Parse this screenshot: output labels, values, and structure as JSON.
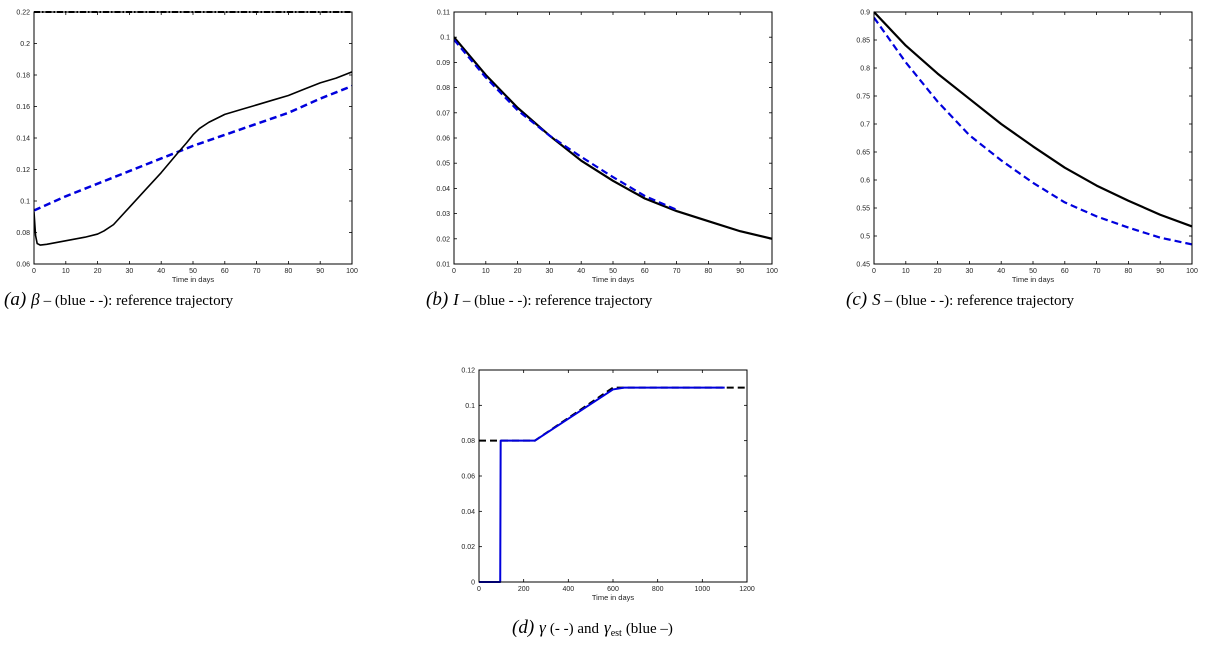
{
  "panels": [
    {
      "id": "a",
      "caption": {
        "tag": "(a)",
        "symbol": "β",
        "text": "– (blue - -): reference trajectory"
      },
      "chart_data": {
        "type": "line",
        "xlabel": "Time in days",
        "ylabel": "",
        "xlim": [
          0,
          100
        ],
        "ylim": [
          0.06,
          0.22
        ],
        "xticks": [
          0,
          10,
          20,
          30,
          40,
          50,
          60,
          70,
          80,
          90,
          100
        ],
        "yticks": [
          0.06,
          0.08,
          0.1,
          0.12,
          0.14,
          0.16,
          0.18,
          0.2,
          0.22
        ],
        "ytick_labels": [
          "0.06",
          "0.08",
          "0.1",
          "0.12",
          "0.14",
          "0.16",
          "0.18",
          "0.2",
          "0.22"
        ],
        "series": [
          {
            "color": "#000000",
            "style": "dashdot",
            "width": 2,
            "x": [
              0,
              100
            ],
            "y": [
              0.22,
              0.22
            ]
          },
          {
            "color": "#0000dd",
            "style": "dashed",
            "width": 2.5,
            "x": [
              0,
              10,
              20,
              30,
              40,
              50,
              60,
              70,
              80,
              90,
              100
            ],
            "y": [
              0.094,
              0.103,
              0.111,
              0.119,
              0.127,
              0.135,
              0.142,
              0.149,
              0.156,
              0.165,
              0.173
            ]
          },
          {
            "color": "#000000",
            "style": "solid",
            "width": 1.6,
            "x": [
              0,
              0.5,
              1,
              2,
              4,
              8,
              12,
              16,
              20,
              22,
              25,
              30,
              35,
              40,
              45,
              48,
              50,
              52,
              55,
              60,
              65,
              70,
              75,
              80,
              85,
              90,
              95,
              100
            ],
            "y": [
              0.093,
              0.078,
              0.073,
              0.072,
              0.0725,
              0.074,
              0.0755,
              0.077,
              0.079,
              0.081,
              0.085,
              0.096,
              0.107,
              0.118,
              0.13,
              0.137,
              0.142,
              0.146,
              0.15,
              0.155,
              0.158,
              0.161,
              0.164,
              0.167,
              0.171,
              0.175,
              0.178,
              0.182
            ]
          }
        ]
      }
    },
    {
      "id": "b",
      "caption": {
        "tag": "(b)",
        "symbol": "I",
        "text": "– (blue - -): reference trajectory"
      },
      "chart_data": {
        "type": "line",
        "xlabel": "Time in days",
        "ylabel": "",
        "xlim": [
          0,
          100
        ],
        "ylim": [
          0.01,
          0.11
        ],
        "xticks": [
          0,
          10,
          20,
          30,
          40,
          50,
          60,
          70,
          80,
          90,
          100
        ],
        "yticks": [
          0.01,
          0.02,
          0.03,
          0.04,
          0.05,
          0.06,
          0.07,
          0.08,
          0.09,
          0.1,
          0.11
        ],
        "ytick_labels": [
          "0.01",
          "0.02",
          "0.03",
          "0.04",
          "0.05",
          "0.06",
          "0.07",
          "0.08",
          "0.09",
          "0.1",
          "0.11"
        ],
        "series": [
          {
            "color": "#000000",
            "style": "solid",
            "width": 2.2,
            "x": [
              0,
              10,
              20,
              30,
              40,
              50,
              60,
              70,
              80,
              90,
              100
            ],
            "y": [
              0.1,
              0.085,
              0.072,
              0.061,
              0.051,
              0.043,
              0.036,
              0.031,
              0.027,
              0.023,
              0.02
            ]
          },
          {
            "color": "#0000dd",
            "style": "dashed",
            "width": 2.2,
            "x": [
              0,
              10,
              20,
              30,
              40,
              50,
              60,
              70
            ],
            "y": [
              0.099,
              0.084,
              0.071,
              0.061,
              0.0525,
              0.0445,
              0.037,
              0.0315
            ]
          }
        ]
      }
    },
    {
      "id": "c",
      "caption": {
        "tag": "(c)",
        "symbol": "S",
        "text": "– (blue - -): reference trajectory"
      },
      "chart_data": {
        "type": "line",
        "xlabel": "Time in days",
        "ylabel": "",
        "xlim": [
          0,
          100
        ],
        "ylim": [
          0.45,
          0.9
        ],
        "xticks": [
          0,
          10,
          20,
          30,
          40,
          50,
          60,
          70,
          80,
          90,
          100
        ],
        "yticks": [
          0.45,
          0.5,
          0.55,
          0.6,
          0.65,
          0.7,
          0.75,
          0.8,
          0.85,
          0.9
        ],
        "ytick_labels": [
          "0.45",
          "0.5",
          "0.55",
          "0.6",
          "0.65",
          "0.7",
          "0.75",
          "0.8",
          "0.85",
          "0.9"
        ],
        "series": [
          {
            "color": "#000000",
            "style": "solid",
            "width": 2.2,
            "x": [
              0,
              10,
              20,
              30,
              40,
              50,
              60,
              70,
              80,
              90,
              100
            ],
            "y": [
              0.9,
              0.84,
              0.79,
              0.745,
              0.7,
              0.66,
              0.622,
              0.59,
              0.563,
              0.538,
              0.517
            ]
          },
          {
            "color": "#0000dd",
            "style": "dashed",
            "width": 2.2,
            "x": [
              0,
              10,
              20,
              30,
              40,
              50,
              60,
              70,
              80,
              90,
              100
            ],
            "y": [
              0.89,
              0.81,
              0.74,
              0.68,
              0.635,
              0.595,
              0.56,
              0.535,
              0.515,
              0.497,
              0.485
            ]
          }
        ]
      }
    },
    {
      "id": "d",
      "caption": {
        "tag": "(d)",
        "symbol": "γ",
        "text_mid": "(- -) and",
        "symbol2": "γ",
        "subscript": "est",
        "text_end": "(blue –)"
      },
      "chart_data": {
        "type": "line",
        "xlabel": "Time in days",
        "ylabel": "",
        "xlim": [
          0,
          1200
        ],
        "ylim": [
          0,
          0.12
        ],
        "xticks": [
          0,
          200,
          400,
          600,
          800,
          1000,
          1200
        ],
        "yticks": [
          0,
          0.02,
          0.04,
          0.06,
          0.08,
          0.1,
          0.12
        ],
        "ytick_labels": [
          "0",
          "0.02",
          "0.04",
          "0.06",
          "0.08",
          "0.1",
          "0.12"
        ],
        "series": [
          {
            "color": "#000000",
            "style": "dashed",
            "width": 2,
            "x": [
              0,
              100,
              250,
              600,
              650,
              1200
            ],
            "y": [
              0.08,
              0.08,
              0.08,
              0.11,
              0.11,
              0.11
            ]
          },
          {
            "color": "#0000dd",
            "style": "solid",
            "width": 2,
            "x": [
              0,
              95,
              97,
              100,
              250,
              600,
              650,
              1100
            ],
            "y": [
              0,
              0,
              0.08,
              0.08,
              0.08,
              0.109,
              0.11,
              0.11
            ]
          }
        ]
      }
    }
  ]
}
